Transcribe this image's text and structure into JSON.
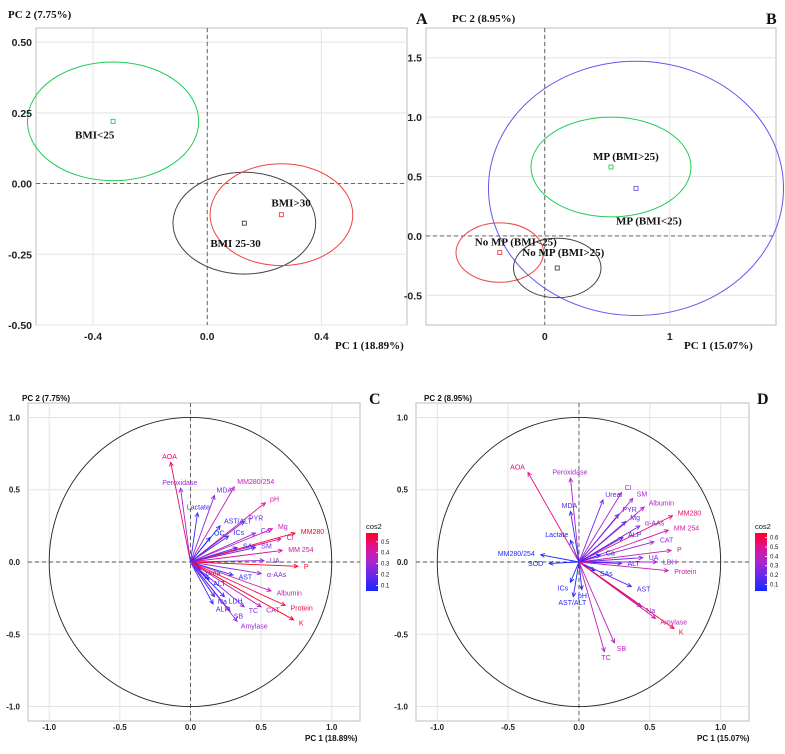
{
  "chart_data": [
    {
      "panel": "A",
      "type": "scatter",
      "title": "",
      "xlabel": "PC 1 (18.89%)",
      "ylabel": "PC 2 (7.75%)",
      "xlim": [
        -0.6,
        0.7
      ],
      "ylim": [
        -0.5,
        0.55
      ],
      "xticks": [
        -0.4,
        0.0,
        0.4
      ],
      "yticks": [
        -0.5,
        -0.25,
        0.0,
        0.25,
        0.5
      ],
      "xtick_labels": [
        "-0.4",
        "0.0",
        "0.4"
      ],
      "ytick_labels": [
        "-0.50",
        "-0.25",
        "0.00",
        "0.25",
        "0.50"
      ],
      "groups": [
        {
          "name": "BMI<25",
          "center": [
            -0.33,
            0.22
          ],
          "ellipse_radius": [
            0.3,
            0.21
          ],
          "color": "#22cc55"
        },
        {
          "name": "BMI 25-30",
          "center": [
            0.13,
            -0.14
          ],
          "ellipse_radius": [
            0.25,
            0.18
          ],
          "color": "#444444"
        },
        {
          "name": "BMI>30",
          "center": [
            0.26,
            -0.11
          ],
          "ellipse_radius": [
            0.25,
            0.18
          ],
          "color": "#ee4444"
        }
      ]
    },
    {
      "panel": "B",
      "type": "scatter",
      "title": "",
      "xlabel": "PC 1 (15.07%)",
      "ylabel": "PC 2 (8.95%)",
      "xlim": [
        -0.95,
        1.85
      ],
      "ylim": [
        -0.75,
        1.75
      ],
      "xticks": [
        0,
        1
      ],
      "yticks": [
        -0.5,
        0.0,
        0.5,
        1.0,
        1.5
      ],
      "xtick_labels": [
        "0",
        "1"
      ],
      "ytick_labels": [
        "-0.5",
        "0.0",
        "0.5",
        "1.0",
        "1.5"
      ],
      "groups": [
        {
          "name": "MP (BMI>25)",
          "center": [
            0.53,
            0.58
          ],
          "ellipse_radius": [
            0.64,
            0.42
          ],
          "color": "#22cc55"
        },
        {
          "name": "MP (BMI<25)",
          "center": [
            0.73,
            0.4
          ],
          "ellipse_radius": [
            1.18,
            1.07
          ],
          "color": "#6655ee"
        },
        {
          "name": "No MP (BMI<25)",
          "center": [
            -0.36,
            -0.14
          ],
          "ellipse_radius": [
            0.35,
            0.25
          ],
          "color": "#ee4444"
        },
        {
          "name": "No MP (BMI>25)",
          "center": [
            0.1,
            -0.27
          ],
          "ellipse_radius": [
            0.35,
            0.25
          ],
          "color": "#444444"
        }
      ]
    },
    {
      "panel": "C",
      "type": "biplot",
      "title": "",
      "xlabel": "PC 1 (18.89%)",
      "ylabel": "PC 2 (7.75%)",
      "xlim": [
        -1.15,
        1.2
      ],
      "ylim": [
        -1.1,
        1.1
      ],
      "xticks": [
        -1.0,
        -0.5,
        0.0,
        0.5,
        1.0
      ],
      "yticks": [
        -1.0,
        -0.5,
        0.0,
        0.5,
        1.0
      ],
      "xtick_labels": [
        "-1.0",
        "-0.5",
        "0.0",
        "0.5",
        "1.0"
      ],
      "ytick_labels": [
        "-1.0",
        "-0.5",
        "0.0",
        "0.5",
        "1.0"
      ],
      "legend_title": "cos2",
      "legend_ticks": [
        "0.5",
        "0.4",
        "0.3",
        "0.2",
        "0.1"
      ],
      "cos2_range": [
        0.05,
        0.58
      ],
      "variables": [
        {
          "name": "AOA",
          "x": -0.14,
          "y": 0.69,
          "cos2": 0.5
        },
        {
          "name": "Peroxidase",
          "x": -0.07,
          "y": 0.51,
          "cos2": 0.28
        },
        {
          "name": "MDA",
          "x": 0.17,
          "y": 0.46,
          "cos2": 0.24
        },
        {
          "name": "MM280/254",
          "x": 0.31,
          "y": 0.52,
          "cos2": 0.37
        },
        {
          "name": "pH",
          "x": 0.53,
          "y": 0.41,
          "cos2": 0.45
        },
        {
          "name": "Lactate",
          "x": 0.05,
          "y": 0.34,
          "cos2": 0.12
        },
        {
          "name": "AST/ALT",
          "x": 0.21,
          "y": 0.25,
          "cos2": 0.11
        },
        {
          "name": "PYR",
          "x": 0.38,
          "y": 0.28,
          "cos2": 0.22
        },
        {
          "name": "OC",
          "x": 0.14,
          "y": 0.17,
          "cos2": 0.05
        },
        {
          "name": "ICs",
          "x": 0.27,
          "y": 0.18,
          "cos2": 0.11
        },
        {
          "name": "Ca",
          "x": 0.46,
          "y": 0.2,
          "cos2": 0.25
        },
        {
          "name": "Mg",
          "x": 0.58,
          "y": 0.23,
          "cos2": 0.38
        },
        {
          "name": "MM280",
          "x": 0.74,
          "y": 0.2,
          "cos2": 0.58
        },
        {
          "name": "Cl",
          "x": 0.64,
          "y": 0.16,
          "cos2": 0.43
        },
        {
          "name": "SM",
          "x": 0.46,
          "y": 0.1,
          "cos2": 0.22
        },
        {
          "name": "MM 254",
          "x": 0.65,
          "y": 0.08,
          "cos2": 0.43
        },
        {
          "name": "SAs",
          "x": 0.33,
          "y": 0.1,
          "cos2": 0.12
        },
        {
          "name": "UA",
          "x": 0.52,
          "y": 0.01,
          "cos2": 0.27
        },
        {
          "name": "P",
          "x": 0.76,
          "y": -0.03,
          "cos2": 0.58
        },
        {
          "name": "α-AAs",
          "x": 0.5,
          "y": -0.08,
          "cos2": 0.25
        },
        {
          "name": "Albumin",
          "x": 0.57,
          "y": -0.2,
          "cos2": 0.37
        },
        {
          "name": "Urea",
          "x": 0.07,
          "y": -0.05,
          "cos2": 0.04
        },
        {
          "name": "ALT",
          "x": 0.13,
          "y": -0.12,
          "cos2": 0.04
        },
        {
          "name": "AST",
          "x": 0.3,
          "y": -0.09,
          "cos2": 0.1
        },
        {
          "name": "LDH",
          "x": 0.24,
          "y": -0.24,
          "cos2": 0.12
        },
        {
          "name": "Na",
          "x": 0.17,
          "y": -0.24,
          "cos2": 0.09
        },
        {
          "name": "ALP",
          "x": 0.16,
          "y": -0.29,
          "cos2": 0.11
        },
        {
          "name": "SB",
          "x": 0.28,
          "y": -0.34,
          "cos2": 0.2
        },
        {
          "name": "TC",
          "x": 0.38,
          "y": -0.31,
          "cos2": 0.24
        },
        {
          "name": "CAT",
          "x": 0.5,
          "y": -0.31,
          "cos2": 0.35
        },
        {
          "name": "Protein",
          "x": 0.67,
          "y": -0.3,
          "cos2": 0.54
        },
        {
          "name": "K",
          "x": 0.73,
          "y": -0.4,
          "cos2": 0.58
        },
        {
          "name": "Amylase",
          "x": 0.33,
          "y": -0.41,
          "cos2": 0.28
        }
      ]
    },
    {
      "panel": "D",
      "type": "biplot",
      "title": "",
      "xlabel": "PC 1 (15.07%)",
      "ylabel": "PC 2 (8.95%)",
      "xlim": [
        -1.15,
        1.2
      ],
      "ylim": [
        -1.1,
        1.1
      ],
      "xticks": [
        -1.0,
        -0.5,
        0.0,
        0.5,
        1.0
      ],
      "yticks": [
        -1.0,
        -0.5,
        0.0,
        0.5,
        1.0
      ],
      "xtick_labels": [
        "-1.0",
        "-0.5",
        "0.0",
        "0.5",
        "1.0"
      ],
      "ytick_labels": [
        "-1.0",
        "-0.5",
        "0.0",
        "0.5",
        "1.0"
      ],
      "legend_title": "cos2",
      "legend_ticks": [
        "0.6",
        "0.5",
        "0.4",
        "0.3",
        "0.2",
        "0.1"
      ],
      "cos2_range": [
        0.03,
        0.65
      ],
      "variables": [
        {
          "name": "AOA",
          "x": -0.36,
          "y": 0.62,
          "cos2": 0.52
        },
        {
          "name": "Peroxidase",
          "x": -0.06,
          "y": 0.58,
          "cos2": 0.34
        },
        {
          "name": "CI",
          "x": 0.3,
          "y": 0.48,
          "cos2": 0.33
        },
        {
          "name": "SM",
          "x": 0.38,
          "y": 0.44,
          "cos2": 0.34
        },
        {
          "name": "Urea",
          "x": 0.17,
          "y": 0.43,
          "cos2": 0.22
        },
        {
          "name": "Albumin",
          "x": 0.46,
          "y": 0.38,
          "cos2": 0.36
        },
        {
          "name": "PYR",
          "x": 0.28,
          "y": 0.33,
          "cos2": 0.2
        },
        {
          "name": "MDA",
          "x": -0.06,
          "y": 0.35,
          "cos2": 0.13
        },
        {
          "name": "MM280",
          "x": 0.66,
          "y": 0.32,
          "cos2": 0.55
        },
        {
          "name": "Mg",
          "x": 0.33,
          "y": 0.28,
          "cos2": 0.2
        },
        {
          "name": "α-AAs",
          "x": 0.43,
          "y": 0.25,
          "cos2": 0.26
        },
        {
          "name": "MM 254",
          "x": 0.63,
          "y": 0.22,
          "cos2": 0.46
        },
        {
          "name": "Lactate",
          "x": -0.06,
          "y": 0.15,
          "cos2": 0.06
        },
        {
          "name": "ALP",
          "x": 0.31,
          "y": 0.17,
          "cos2": 0.13
        },
        {
          "name": "CAT",
          "x": 0.53,
          "y": 0.14,
          "cos2": 0.31
        },
        {
          "name": "P",
          "x": 0.65,
          "y": 0.08,
          "cos2": 0.44
        },
        {
          "name": "UA",
          "x": 0.45,
          "y": 0.03,
          "cos2": 0.22
        },
        {
          "name": "LDH",
          "x": 0.55,
          "y": 0.0,
          "cos2": 0.3
        },
        {
          "name": "MM280/254",
          "x": -0.27,
          "y": 0.05,
          "cos2": 0.05
        },
        {
          "name": "SOD",
          "x": -0.21,
          "y": -0.01,
          "cos2": 0.05
        },
        {
          "name": "Ca",
          "x": 0.15,
          "y": 0.05,
          "cos2": 0.04
        },
        {
          "name": "ALT",
          "x": 0.3,
          "y": -0.01,
          "cos2": 0.09
        },
        {
          "name": "Protein",
          "x": 0.63,
          "y": -0.06,
          "cos2": 0.42
        },
        {
          "name": "SAs",
          "x": 0.11,
          "y": -0.06,
          "cos2": 0.03
        },
        {
          "name": "AST",
          "x": 0.37,
          "y": -0.17,
          "cos2": 0.17
        },
        {
          "name": "ICs",
          "x": -0.06,
          "y": -0.14,
          "cos2": 0.04
        },
        {
          "name": "pH",
          "x": 0.02,
          "y": -0.19,
          "cos2": 0.04
        },
        {
          "name": "AST/ALT",
          "x": -0.04,
          "y": -0.24,
          "cos2": 0.07
        },
        {
          "name": "Na",
          "x": 0.44,
          "y": -0.31,
          "cos2": 0.3
        },
        {
          "name": "Amylase",
          "x": 0.54,
          "y": -0.39,
          "cos2": 0.42
        },
        {
          "name": "K",
          "x": 0.67,
          "y": -0.46,
          "cos2": 0.62
        },
        {
          "name": "SB",
          "x": 0.25,
          "y": -0.56,
          "cos2": 0.38
        },
        {
          "name": "TC",
          "x": 0.18,
          "y": -0.62,
          "cos2": 0.4
        }
      ]
    }
  ]
}
